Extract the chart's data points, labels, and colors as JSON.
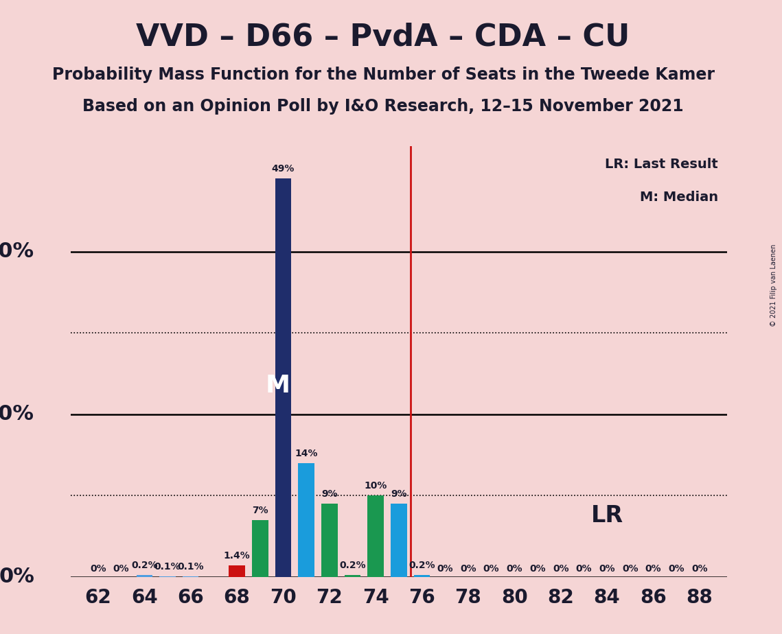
{
  "title": "VVD – D66 – PvdA – CDA – CU",
  "subtitle1": "Probability Mass Function for the Number of Seats in the Tweede Kamer",
  "subtitle2": "Based on an Opinion Poll by I&O Research, 12–15 November 2021",
  "copyright": "© 2021 Filip van Laenen",
  "seats": [
    62,
    63,
    64,
    65,
    66,
    67,
    68,
    69,
    70,
    71,
    72,
    73,
    74,
    75,
    76,
    77,
    78,
    79,
    80,
    81,
    82,
    83,
    84,
    85,
    86,
    87,
    88
  ],
  "probabilities": [
    0.0,
    0.0,
    0.2,
    0.1,
    0.1,
    0.0,
    1.4,
    7.0,
    49.0,
    14.0,
    9.0,
    0.2,
    10.0,
    9.0,
    0.2,
    0.0,
    0.0,
    0.0,
    0.0,
    0.0,
    0.0,
    0.0,
    0.0,
    0.0,
    0.0,
    0.0,
    0.0
  ],
  "bar_colors": [
    "#4d9de0",
    "#4d9de0",
    "#4d9de0",
    "#4d9de0",
    "#4d9de0",
    "#4d9de0",
    "#cc1111",
    "#1a9850",
    "#1f2d6b",
    "#1a9cdc",
    "#1a9850",
    "#1a9850",
    "#1a9850",
    "#1a9cdc",
    "#1a9cdc",
    "#4d9de0",
    "#4d9de0",
    "#4d9de0",
    "#4d9de0",
    "#4d9de0",
    "#4d9de0",
    "#4d9de0",
    "#4d9de0",
    "#4d9de0",
    "#4d9de0",
    "#4d9de0",
    "#4d9de0"
  ],
  "median_seat": 70,
  "lr_seat": 75.5,
  "background_color": "#f5d5d5",
  "bar_width": 0.7,
  "legend_lr": "LR: Last Result",
  "legend_m": "M: Median",
  "lr_label": "LR",
  "m_label": "M",
  "title_fontsize": 32,
  "subtitle_fontsize": 17,
  "bar_label_fontsize": 10,
  "ylabel_fontsize": 22,
  "xtick_fontsize": 20,
  "solid_hlines": [
    0,
    20,
    40
  ],
  "dotted_hlines": [
    10,
    30
  ],
  "bar_labels": {
    "62": "0%",
    "63": "0%",
    "64": "0.2%",
    "65": "0.1%",
    "66": "0.1%",
    "68": "1.4%",
    "69": "7%",
    "70": "49%",
    "71": "14%",
    "72": "9%",
    "73": "0.2%",
    "74": "10%",
    "75": "9%",
    "76": "0.2%",
    "77": "0%",
    "78": "0%",
    "79": "0%",
    "80": "0%",
    "81": "0%",
    "82": "0%",
    "83": "0%",
    "84": "0%",
    "85": "0%",
    "86": "0%",
    "87": "0%",
    "88": "0%"
  },
  "ylim_max": 53,
  "text_color": "#1a1a2e"
}
